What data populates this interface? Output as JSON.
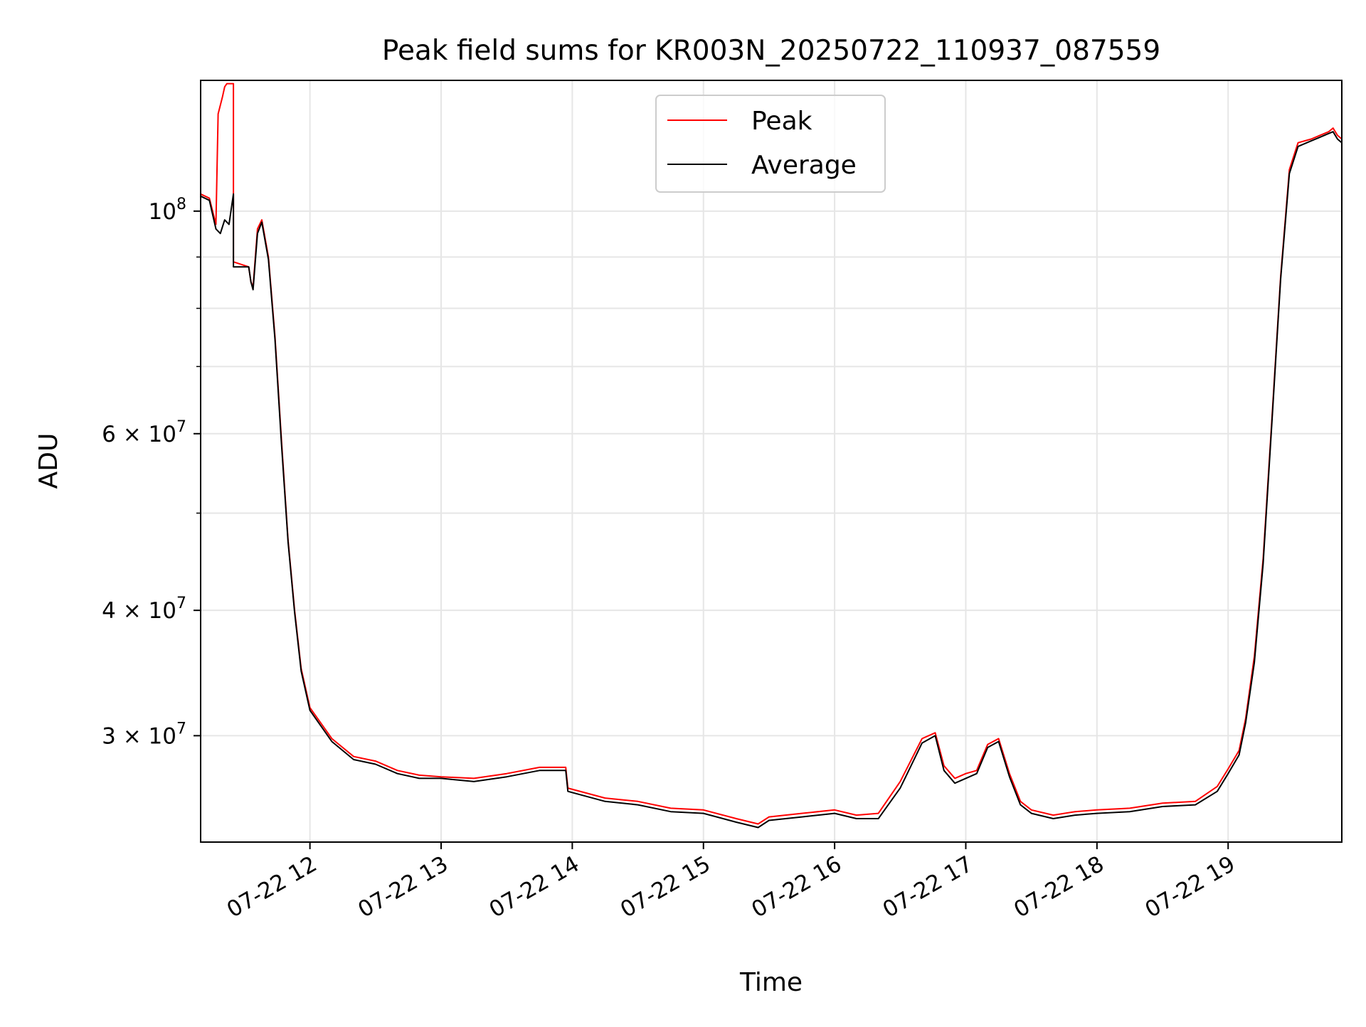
{
  "chart_data": {
    "type": "line",
    "title": "Peak field sums for KR003N_20250722_110937_087559",
    "xlabel": "Time",
    "ylabel": "ADU",
    "xlim": [
      "2025-07-22 11:10",
      "2025-07-22 19:52"
    ],
    "ylim": [
      23500000,
      135000000
    ],
    "yscale": "log",
    "grid": true,
    "legend_position": "top-center",
    "x_ticks": [
      "2025-07-22 12:00",
      "2025-07-22 13:00",
      "2025-07-22 14:00",
      "2025-07-22 15:00",
      "2025-07-22 16:00",
      "2025-07-22 17:00",
      "2025-07-22 18:00",
      "2025-07-22 19:00"
    ],
    "x_tick_labels": [
      "07-22 12",
      "07-22 13",
      "07-22 14",
      "07-22 15",
      "07-22 16",
      "07-22 17",
      "07-22 18",
      "07-22 19"
    ],
    "y_ticks": [
      100000000,
      60000000,
      40000000,
      30000000
    ],
    "y_tick_labels": [
      {
        "mantissa": "",
        "base": "10",
        "exp": "8"
      },
      {
        "mantissa": "6 × ",
        "base": "10",
        "exp": "7"
      },
      {
        "mantissa": "4 × ",
        "base": "10",
        "exp": "7"
      },
      {
        "mantissa": "3 × ",
        "base": "10",
        "exp": "7"
      }
    ],
    "y_minor_ticks": [
      90000000,
      80000000,
      70000000,
      50000000
    ],
    "series": [
      {
        "name": "Peak",
        "color": "#ff0000",
        "x": [
          "2025-07-22 11:10",
          "2025-07-22 11:14",
          "2025-07-22 11:17",
          "2025-07-22 11:18",
          "2025-07-22 11:20",
          "2025-07-22 11:21",
          "2025-07-22 11:22",
          "2025-07-22 11:24",
          "2025-07-22 11:25",
          "2025-07-22 11:25",
          "2025-07-22 11:32",
          "2025-07-22 11:33",
          "2025-07-22 11:34",
          "2025-07-22 11:36",
          "2025-07-22 11:38",
          "2025-07-22 11:41",
          "2025-07-22 11:44",
          "2025-07-22 11:47",
          "2025-07-22 11:50",
          "2025-07-22 11:53",
          "2025-07-22 11:56",
          "2025-07-22 12:00",
          "2025-07-22 12:10",
          "2025-07-22 12:20",
          "2025-07-22 12:30",
          "2025-07-22 12:40",
          "2025-07-22 12:50",
          "2025-07-22 13:00",
          "2025-07-22 13:15",
          "2025-07-22 13:30",
          "2025-07-22 13:45",
          "2025-07-22 13:57",
          "2025-07-22 13:58",
          "2025-07-22 14:15",
          "2025-07-22 14:30",
          "2025-07-22 14:45",
          "2025-07-22 15:00",
          "2025-07-22 15:15",
          "2025-07-22 15:25",
          "2025-07-22 15:30",
          "2025-07-22 15:45",
          "2025-07-22 16:00",
          "2025-07-22 16:10",
          "2025-07-22 16:20",
          "2025-07-22 16:30",
          "2025-07-22 16:40",
          "2025-07-22 16:46",
          "2025-07-22 16:50",
          "2025-07-22 16:55",
          "2025-07-22 17:00",
          "2025-07-22 17:05",
          "2025-07-22 17:10",
          "2025-07-22 17:15",
          "2025-07-22 17:20",
          "2025-07-22 17:25",
          "2025-07-22 17:30",
          "2025-07-22 17:40",
          "2025-07-22 17:50",
          "2025-07-22 18:00",
          "2025-07-22 18:15",
          "2025-07-22 18:30",
          "2025-07-22 18:45",
          "2025-07-22 18:55",
          "2025-07-22 19:00",
          "2025-07-22 19:05",
          "2025-07-22 19:08",
          "2025-07-22 19:12",
          "2025-07-22 19:16",
          "2025-07-22 19:20",
          "2025-07-22 19:24",
          "2025-07-22 19:28",
          "2025-07-22 19:32",
          "2025-07-22 19:38",
          "2025-07-22 19:42",
          "2025-07-22 19:46",
          "2025-07-22 19:48",
          "2025-07-22 19:50",
          "2025-07-22 19:52"
        ],
        "y": [
          104000000,
          103000000,
          97000000,
          125000000,
          130000000,
          133000000,
          134000000,
          134000000,
          134000000,
          89000000,
          88000000,
          85000000,
          84000000,
          96000000,
          98000000,
          90000000,
          75000000,
          59000000,
          47000000,
          40000000,
          35000000,
          32000000,
          29800000,
          28600000,
          28300000,
          27700000,
          27400000,
          27300000,
          27200000,
          27500000,
          27900000,
          27900000,
          26600000,
          26000000,
          25800000,
          25400000,
          25300000,
          24800000,
          24500000,
          24900000,
          25100000,
          25300000,
          25000000,
          25100000,
          27000000,
          29800000,
          30200000,
          28000000,
          27200000,
          27500000,
          27700000,
          29400000,
          29800000,
          27500000,
          25800000,
          25300000,
          25000000,
          25200000,
          25300000,
          25400000,
          25700000,
          25800000,
          26700000,
          27800000,
          29000000,
          31200000,
          36000000,
          45000000,
          62000000,
          86000000,
          110000000,
          117000000,
          118000000,
          119000000,
          120000000,
          121000000,
          119000000,
          118000000
        ]
      },
      {
        "name": "Average",
        "color": "#000000",
        "x": [
          "2025-07-22 11:10",
          "2025-07-22 11:14",
          "2025-07-22 11:17",
          "2025-07-22 11:19",
          "2025-07-22 11:21",
          "2025-07-22 11:23",
          "2025-07-22 11:25",
          "2025-07-22 11:25",
          "2025-07-22 11:32",
          "2025-07-22 11:33",
          "2025-07-22 11:34",
          "2025-07-22 11:36",
          "2025-07-22 11:38",
          "2025-07-22 11:41",
          "2025-07-22 11:44",
          "2025-07-22 11:47",
          "2025-07-22 11:50",
          "2025-07-22 11:53",
          "2025-07-22 11:56",
          "2025-07-22 12:00",
          "2025-07-22 12:10",
          "2025-07-22 12:20",
          "2025-07-22 12:30",
          "2025-07-22 12:40",
          "2025-07-22 12:50",
          "2025-07-22 13:00",
          "2025-07-22 13:15",
          "2025-07-22 13:30",
          "2025-07-22 13:45",
          "2025-07-22 13:57",
          "2025-07-22 13:58",
          "2025-07-22 14:15",
          "2025-07-22 14:30",
          "2025-07-22 14:45",
          "2025-07-22 15:00",
          "2025-07-22 15:15",
          "2025-07-22 15:25",
          "2025-07-22 15:30",
          "2025-07-22 15:45",
          "2025-07-22 16:00",
          "2025-07-22 16:10",
          "2025-07-22 16:20",
          "2025-07-22 16:30",
          "2025-07-22 16:40",
          "2025-07-22 16:46",
          "2025-07-22 16:50",
          "2025-07-22 16:55",
          "2025-07-22 17:00",
          "2025-07-22 17:05",
          "2025-07-22 17:10",
          "2025-07-22 17:15",
          "2025-07-22 17:20",
          "2025-07-22 17:25",
          "2025-07-22 17:30",
          "2025-07-22 17:40",
          "2025-07-22 17:50",
          "2025-07-22 18:00",
          "2025-07-22 18:15",
          "2025-07-22 18:30",
          "2025-07-22 18:45",
          "2025-07-22 18:55",
          "2025-07-22 19:00",
          "2025-07-22 19:05",
          "2025-07-22 19:08",
          "2025-07-22 19:12",
          "2025-07-22 19:16",
          "2025-07-22 19:20",
          "2025-07-22 19:24",
          "2025-07-22 19:28",
          "2025-07-22 19:32",
          "2025-07-22 19:38",
          "2025-07-22 19:42",
          "2025-07-22 19:46",
          "2025-07-22 19:48",
          "2025-07-22 19:50",
          "2025-07-22 19:52"
        ],
        "y": [
          103500000,
          102500000,
          96000000,
          95000000,
          98000000,
          97000000,
          104000000,
          88000000,
          88000000,
          85000000,
          83500000,
          95000000,
          97500000,
          89500000,
          74500000,
          58500000,
          46800000,
          39800000,
          34800000,
          31800000,
          29600000,
          28400000,
          28100000,
          27500000,
          27200000,
          27200000,
          27000000,
          27300000,
          27700000,
          27700000,
          26400000,
          25800000,
          25600000,
          25200000,
          25100000,
          24600000,
          24300000,
          24700000,
          24900000,
          25100000,
          24800000,
          24800000,
          26600000,
          29500000,
          30000000,
          27700000,
          26900000,
          27200000,
          27500000,
          29200000,
          29600000,
          27300000,
          25600000,
          25100000,
          24800000,
          25000000,
          25100000,
          25200000,
          25500000,
          25600000,
          26400000,
          27500000,
          28700000,
          30900000,
          35500000,
          44500000,
          61500000,
          85500000,
          109000000,
          116000000,
          117500000,
          118500000,
          119500000,
          120000000,
          118000000,
          117000000
        ]
      }
    ]
  }
}
